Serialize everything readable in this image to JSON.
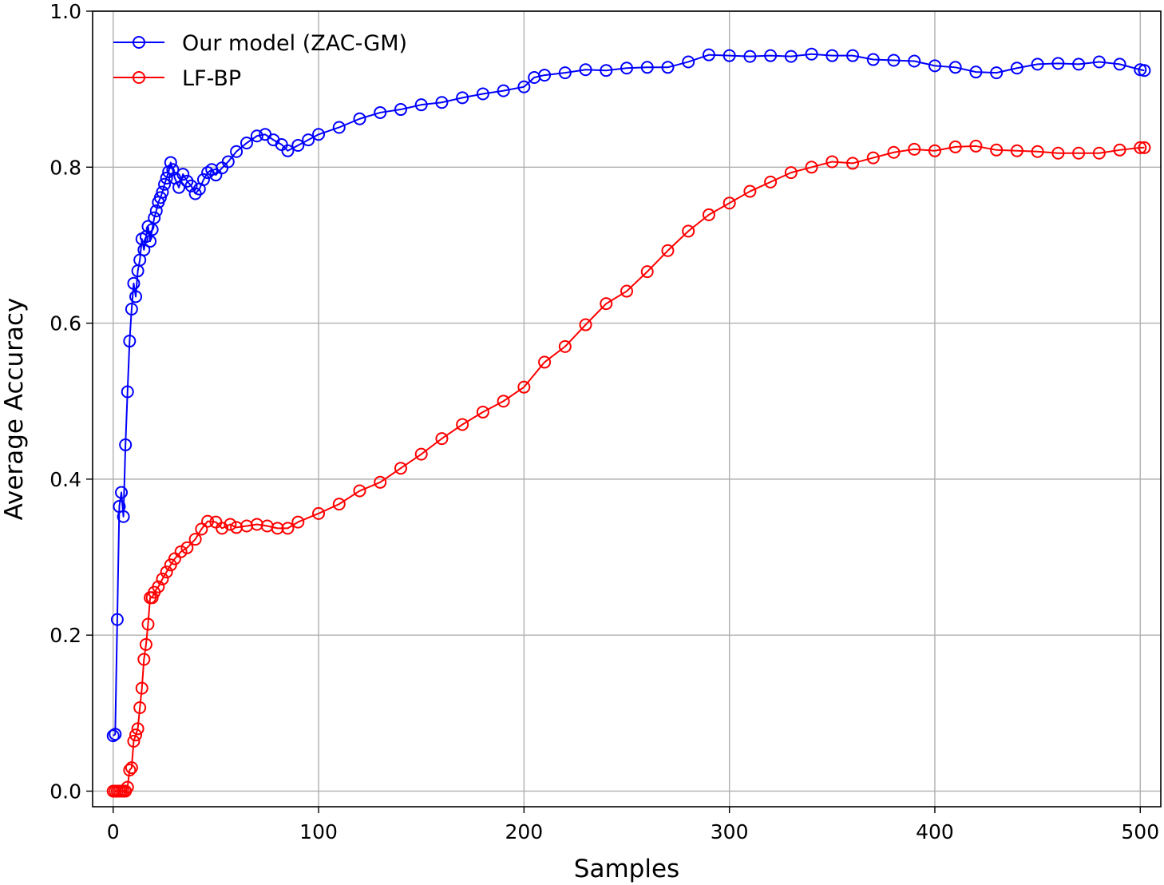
{
  "chart_data": {
    "type": "line",
    "title": "",
    "xlabel": "Samples",
    "ylabel": "Average Accuracy",
    "xlim": [
      -10,
      510
    ],
    "ylim": [
      -0.02,
      1.0
    ],
    "xticks": [
      0,
      100,
      200,
      300,
      400,
      500
    ],
    "xtick_labels": [
      "0",
      "100",
      "200",
      "300",
      "400",
      "500"
    ],
    "yticks": [
      0.0,
      0.2,
      0.4,
      0.6,
      0.8,
      1.0
    ],
    "ytick_labels": [
      "0.0",
      "0.2",
      "0.4",
      "0.6",
      "0.8",
      "1.0"
    ],
    "grid": true,
    "legend_position": "upper-left",
    "marker": "open-circle",
    "series": [
      {
        "name": "Our model (ZAC-GM)",
        "color": "#0000ff",
        "points": [
          [
            0,
            0.071
          ],
          [
            1,
            0.073
          ],
          [
            2,
            0.22
          ],
          [
            3,
            0.365
          ],
          [
            4,
            0.383
          ],
          [
            5,
            0.352
          ],
          [
            6,
            0.444
          ],
          [
            7,
            0.512
          ],
          [
            8,
            0.577
          ],
          [
            9,
            0.618
          ],
          [
            10,
            0.651
          ],
          [
            11,
            0.634
          ],
          [
            12,
            0.667
          ],
          [
            13,
            0.681
          ],
          [
            14,
            0.708
          ],
          [
            15,
            0.694
          ],
          [
            16,
            0.711
          ],
          [
            17,
            0.724
          ],
          [
            18,
            0.705
          ],
          [
            19,
            0.72
          ],
          [
            20,
            0.735
          ],
          [
            21,
            0.744
          ],
          [
            22,
            0.755
          ],
          [
            23,
            0.761
          ],
          [
            24,
            0.768
          ],
          [
            25,
            0.778
          ],
          [
            26,
            0.786
          ],
          [
            27,
            0.794
          ],
          [
            28,
            0.806
          ],
          [
            29,
            0.797
          ],
          [
            30,
            0.786
          ],
          [
            32,
            0.774
          ],
          [
            34,
            0.791
          ],
          [
            36,
            0.782
          ],
          [
            38,
            0.776
          ],
          [
            40,
            0.766
          ],
          [
            42,
            0.772
          ],
          [
            44,
            0.784
          ],
          [
            46,
            0.793
          ],
          [
            48,
            0.797
          ],
          [
            50,
            0.79
          ],
          [
            53,
            0.799
          ],
          [
            56,
            0.807
          ],
          [
            60,
            0.82
          ],
          [
            65,
            0.831
          ],
          [
            70,
            0.84
          ],
          [
            74,
            0.842
          ],
          [
            78,
            0.835
          ],
          [
            82,
            0.829
          ],
          [
            85,
            0.821
          ],
          [
            90,
            0.828
          ],
          [
            95,
            0.835
          ],
          [
            100,
            0.842
          ],
          [
            110,
            0.851
          ],
          [
            120,
            0.862
          ],
          [
            130,
            0.87
          ],
          [
            140,
            0.874
          ],
          [
            150,
            0.88
          ],
          [
            160,
            0.883
          ],
          [
            170,
            0.889
          ],
          [
            180,
            0.894
          ],
          [
            190,
            0.898
          ],
          [
            200,
            0.903
          ],
          [
            205,
            0.915
          ],
          [
            210,
            0.918
          ],
          [
            220,
            0.921
          ],
          [
            230,
            0.925
          ],
          [
            240,
            0.924
          ],
          [
            250,
            0.927
          ],
          [
            260,
            0.928
          ],
          [
            270,
            0.928
          ],
          [
            280,
            0.935
          ],
          [
            290,
            0.944
          ],
          [
            300,
            0.943
          ],
          [
            310,
            0.942
          ],
          [
            320,
            0.943
          ],
          [
            330,
            0.942
          ],
          [
            340,
            0.945
          ],
          [
            350,
            0.943
          ],
          [
            360,
            0.943
          ],
          [
            370,
            0.938
          ],
          [
            380,
            0.937
          ],
          [
            390,
            0.936
          ],
          [
            400,
            0.93
          ],
          [
            410,
            0.928
          ],
          [
            420,
            0.922
          ],
          [
            430,
            0.921
          ],
          [
            440,
            0.927
          ],
          [
            450,
            0.932
          ],
          [
            460,
            0.933
          ],
          [
            470,
            0.932
          ],
          [
            480,
            0.935
          ],
          [
            490,
            0.932
          ],
          [
            500,
            0.925
          ],
          [
            502,
            0.924
          ]
        ]
      },
      {
        "name": "LF-BP",
        "color": "#ff0000",
        "points": [
          [
            0,
            0.0
          ],
          [
            1,
            0.0
          ],
          [
            2,
            0.0
          ],
          [
            3,
            0.0
          ],
          [
            4,
            0.0
          ],
          [
            5,
            0.0
          ],
          [
            6,
            0.0
          ],
          [
            7,
            0.005
          ],
          [
            8,
            0.027
          ],
          [
            9,
            0.03
          ],
          [
            10,
            0.064
          ],
          [
            11,
            0.072
          ],
          [
            12,
            0.08
          ],
          [
            13,
            0.107
          ],
          [
            14,
            0.132
          ],
          [
            15,
            0.169
          ],
          [
            16,
            0.188
          ],
          [
            17,
            0.214
          ],
          [
            18,
            0.248
          ],
          [
            19,
            0.248
          ],
          [
            20,
            0.255
          ],
          [
            22,
            0.262
          ],
          [
            24,
            0.272
          ],
          [
            26,
            0.281
          ],
          [
            28,
            0.29
          ],
          [
            30,
            0.298
          ],
          [
            33,
            0.307
          ],
          [
            36,
            0.312
          ],
          [
            40,
            0.323
          ],
          [
            43,
            0.336
          ],
          [
            46,
            0.346
          ],
          [
            50,
            0.345
          ],
          [
            53,
            0.337
          ],
          [
            57,
            0.342
          ],
          [
            60,
            0.338
          ],
          [
            65,
            0.34
          ],
          [
            70,
            0.342
          ],
          [
            75,
            0.34
          ],
          [
            80,
            0.337
          ],
          [
            85,
            0.337
          ],
          [
            90,
            0.345
          ],
          [
            100,
            0.356
          ],
          [
            110,
            0.368
          ],
          [
            120,
            0.385
          ],
          [
            130,
            0.396
          ],
          [
            140,
            0.414
          ],
          [
            150,
            0.432
          ],
          [
            160,
            0.452
          ],
          [
            170,
            0.47
          ],
          [
            180,
            0.486
          ],
          [
            190,
            0.5
          ],
          [
            200,
            0.518
          ],
          [
            210,
            0.55
          ],
          [
            220,
            0.57
          ],
          [
            230,
            0.598
          ],
          [
            240,
            0.625
          ],
          [
            250,
            0.641
          ],
          [
            260,
            0.666
          ],
          [
            270,
            0.693
          ],
          [
            280,
            0.718
          ],
          [
            290,
            0.739
          ],
          [
            300,
            0.754
          ],
          [
            310,
            0.769
          ],
          [
            320,
            0.781
          ],
          [
            330,
            0.793
          ],
          [
            340,
            0.8
          ],
          [
            350,
            0.807
          ],
          [
            360,
            0.805
          ],
          [
            370,
            0.812
          ],
          [
            380,
            0.819
          ],
          [
            390,
            0.823
          ],
          [
            400,
            0.821
          ],
          [
            410,
            0.826
          ],
          [
            420,
            0.827
          ],
          [
            430,
            0.822
          ],
          [
            440,
            0.821
          ],
          [
            450,
            0.82
          ],
          [
            460,
            0.818
          ],
          [
            470,
            0.818
          ],
          [
            480,
            0.818
          ],
          [
            490,
            0.822
          ],
          [
            500,
            0.825
          ],
          [
            502,
            0.825
          ]
        ]
      }
    ]
  }
}
